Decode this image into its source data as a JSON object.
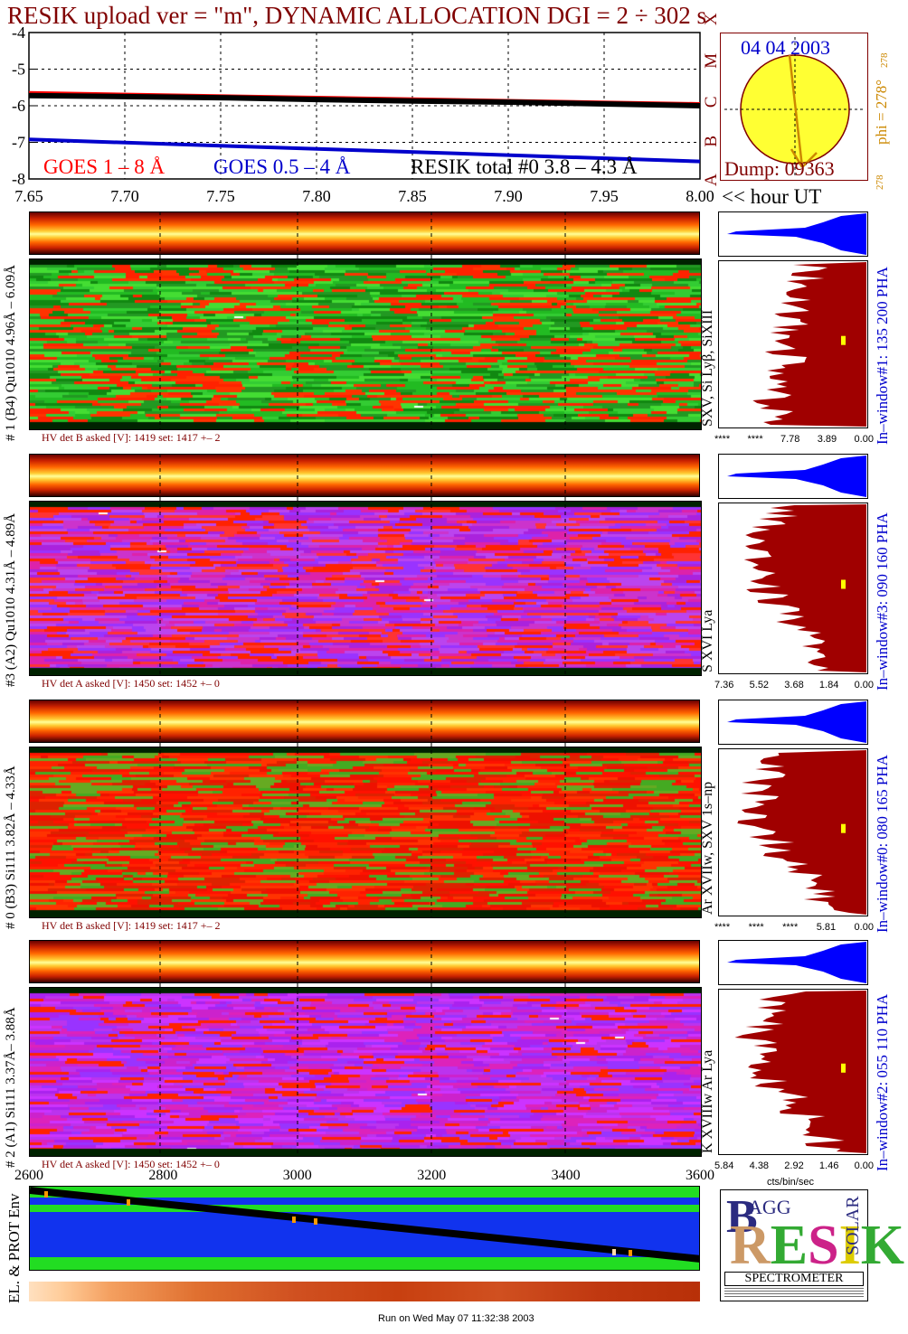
{
  "title": "RESIK upload ver = \"m\", DYNAMIC ALLOCATION  DGI =   2 ÷ 302 s",
  "colors": {
    "dark_red": "#800000",
    "goes_long": "#ff0000",
    "goes_short": "#0000cc",
    "resik_total": "#000000",
    "sun": "#ffff33",
    "hist_red": "#a00000",
    "hist_blue": "#0000ff",
    "env_green": "#22dd22",
    "env_blue": "#1133ee",
    "marker_yellow": "#ffff00",
    "marker_orange": "#ff9900"
  },
  "chart_data": [
    {
      "type": "line",
      "name": "goes-lightcurve",
      "x_range": [
        7.65,
        8.0
      ],
      "xlabel": "<< hour UT",
      "xticks": [
        "7.65",
        "7.70",
        "7.75",
        "7.80",
        "7.85",
        "7.90",
        "7.95",
        "8.00"
      ],
      "yticks": [
        "-4",
        "-5",
        "-6",
        "-7",
        "-8"
      ],
      "ylim": [
        -8,
        -4
      ],
      "series": [
        {
          "name": "GOES 1 – 8 Å",
          "x": [
            7.65,
            8.0
          ],
          "y": [
            -5.65,
            -5.95
          ]
        },
        {
          "name": "RESIK total #0  3.8 – 4.3 Å",
          "x": [
            7.65,
            7.7,
            7.75,
            7.8,
            7.85,
            7.9,
            7.95,
            8.0
          ],
          "y": [
            -5.72,
            -5.75,
            -5.78,
            -5.83,
            -5.87,
            -5.9,
            -5.95,
            -6.0
          ]
        },
        {
          "name": "GOES 0.5 – 4 Å",
          "x": [
            7.65,
            8.0
          ],
          "y": [
            -6.92,
            -7.52
          ]
        }
      ],
      "grid": true
    },
    {
      "type": "heatmap",
      "name": "detector-spectrograms",
      "x_range": [
        2600,
        3600
      ],
      "xticks": [
        "2600",
        "2800",
        "3000",
        "3200",
        "3400",
        "3600"
      ]
    }
  ],
  "goes_labels": {
    "long": "GOES 1 – 8 Å",
    "short": "GOES 0.5 – 4 Å",
    "resik": "RESIK total #0  3.8 – 4.3 Å"
  },
  "xaxis_label": "<< hour UT",
  "class_letters": "A B C M X",
  "sun": {
    "date": "04 04 2003",
    "dump": "Dump: 09363",
    "phi": "phi = 278°",
    "phi_sup": "278",
    "phi_bottom": "278"
  },
  "panels": [
    {
      "label": "# 1 (B4) Qu1010 4.96Å – 6.09Å",
      "lines": "SXV, Si Lyβ, SiXIII",
      "window": "In–window#1:  135 200 PHA",
      "hv": "HV det B asked [V]:  1419 set:  1417 +–    2",
      "hist_ticks": [
        "****",
        "****",
        "7.78",
        "3.89",
        "0.00"
      ],
      "palette": "green"
    },
    {
      "label": "#3 (A2) Qu1010  4.31Å – 4.89Å",
      "lines": "S XVI Lya",
      "window": "In–window#3:  090 160 PHA",
      "hv": "HV det A asked [V]:  1450 set:  1452 +–    0",
      "hist_ticks": [
        "7.36",
        "5.52",
        "3.68",
        "1.84",
        "0.00"
      ],
      "palette": "purple"
    },
    {
      "label": "# 0 (B3) Si111  3.82Å – 4.33Å",
      "lines": "Ar XVIIw,  SXV 1s–np",
      "window": "In–window#0:  080 165 PHA",
      "hv": "HV det B asked [V]:  1419 set:  1417 +–    2",
      "hist_ticks": [
        "****",
        "****",
        "****",
        "5.81",
        "0.00"
      ],
      "palette": "red"
    },
    {
      "label": "# 2 (A1) Si111  3.37Å– 3.88Å",
      "lines": "K XVIIIw  Ar Lya",
      "window": "In–window#2:  055 110 PHA",
      "hv": "HV det A asked [V]:  1450 set:  1452 +–    0",
      "hist_ticks": [
        "5.84",
        "4.38",
        "2.92",
        "1.46",
        "0.00"
      ],
      "palette": "purple2"
    }
  ],
  "hist_unit": "cts/bin/sec",
  "env_label": "EL. & PROT Env",
  "logo": {
    "letters": "RESIK",
    "bragg": "BRAGG",
    "solar": "SOLAR",
    "subtitle": "SPECTROMETER"
  },
  "footer": "Run on Wed May 07 11:32:38 2003"
}
